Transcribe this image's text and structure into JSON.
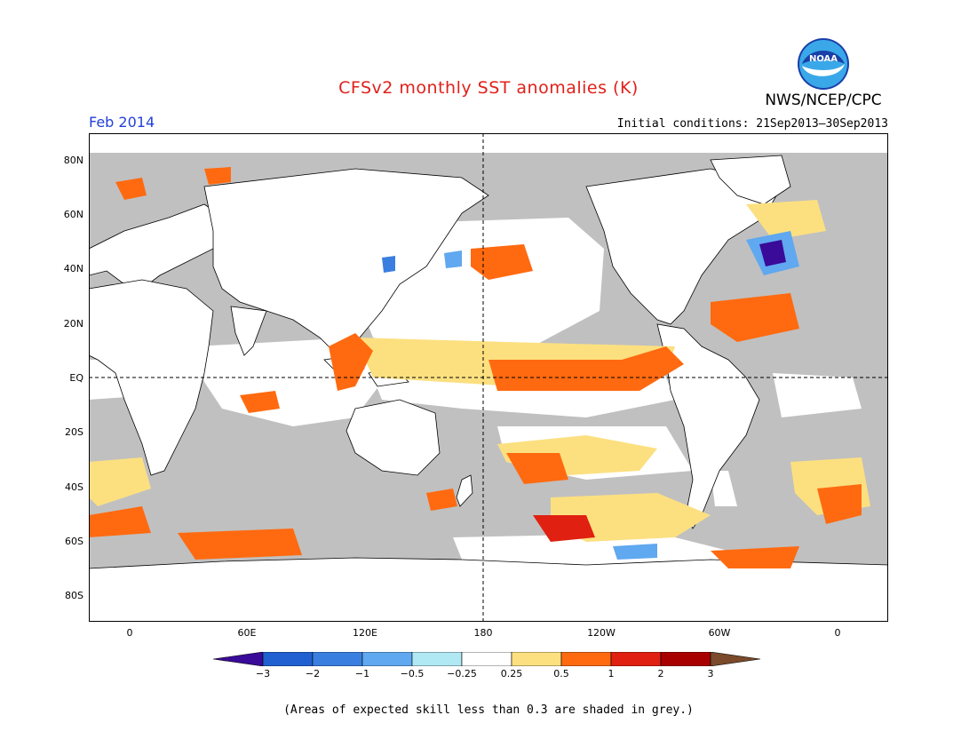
{
  "header": {
    "title": "CFSv2 monthly SST anomalies (K)",
    "agency": "NWS/NCEP/CPC",
    "period": "Feb 2014",
    "initial_conditions": "Initial conditions: 21Sep2013–30Sep2013",
    "logo_text": "NOAA"
  },
  "axes": {
    "lat_labels": [
      "80N",
      "60N",
      "40N",
      "20N",
      "EQ",
      "20S",
      "40S",
      "60S",
      "80S"
    ],
    "lon_labels": [
      "0",
      "60E",
      "120E",
      "180",
      "120W",
      "60W",
      "0"
    ]
  },
  "colorbar": {
    "labels": [
      "−3",
      "−2",
      "−1",
      "−0.5",
      "−0.25",
      "0.25",
      "0.5",
      "1",
      "2",
      "3"
    ],
    "colors": [
      "#3a0a98",
      "#2060d0",
      "#3a7fe0",
      "#60a8f0",
      "#b0e8f4",
      "#ffffff",
      "#fce080",
      "#ff6a10",
      "#e02010",
      "#a80000",
      "#7a4a2a"
    ]
  },
  "map": {
    "projection": "cylindrical equidistant",
    "longitude_range": [
      "20W",
      "20E (380)"
    ],
    "latitude_range": [
      "90S",
      "90N"
    ],
    "land_color": "#ffffff",
    "low_skill_color": "#c0c0c0",
    "reference_lines": [
      "EQ",
      "180"
    ]
  },
  "footnote": "(Areas of expected skill less than 0.3 are shaded in grey.)"
}
